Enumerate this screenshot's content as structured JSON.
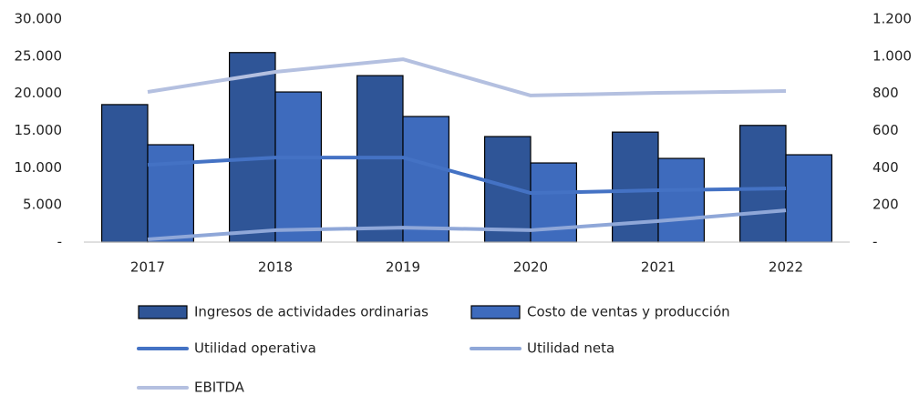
{
  "chart_data": {
    "type": "bar_line",
    "categories": [
      "2017",
      "2018",
      "2019",
      "2020",
      "2021",
      "2022"
    ],
    "series": [
      {
        "name": "Ingresos de actividades ordinarias",
        "type": "bar",
        "color": "#2f5597",
        "values": [
          18500,
          25500,
          22400,
          14200,
          14800,
          15700
        ]
      },
      {
        "name": "Costo de ventas y producción",
        "type": "bar",
        "color": "#3e6bbd",
        "values": [
          13100,
          20200,
          16900,
          10650,
          11260,
          11750
        ]
      },
      {
        "name": "Utilidad operativa",
        "type": "line",
        "axis": "y2",
        "color": "#4472c4",
        "values": [
          416,
          455,
          455,
          264,
          279,
          289
        ]
      },
      {
        "name": "Utilidad neta",
        "type": "line",
        "axis": "y2",
        "color": "#8fa7d8",
        "values": [
          15,
          64,
          78,
          64,
          113,
          171
        ]
      },
      {
        "name": "EBITDA",
        "type": "line",
        "axis": "y2",
        "color": "#b4c0e0",
        "values": [
          808,
          916,
          984,
          789,
          803,
          813
        ]
      }
    ],
    "ylim": [
      0,
      30000
    ],
    "yticks": [
      {
        "value": 0,
        "label": "-"
      },
      {
        "value": 5000,
        "label": "5.000"
      },
      {
        "value": 10000,
        "label": "10.000"
      },
      {
        "value": 15000,
        "label": "15.000"
      },
      {
        "value": 20000,
        "label": "20.000"
      },
      {
        "value": 25000,
        "label": "25.000"
      },
      {
        "value": 30000,
        "label": "30.000"
      }
    ],
    "y2lim": [
      0,
      1200
    ],
    "y2ticks": [
      {
        "value": 0,
        "label": "-"
      },
      200,
      400,
      600,
      800,
      {
        "value": 1000,
        "label": "1.000"
      },
      {
        "value": 1200,
        "label": "1.200"
      }
    ],
    "grid": false
  }
}
